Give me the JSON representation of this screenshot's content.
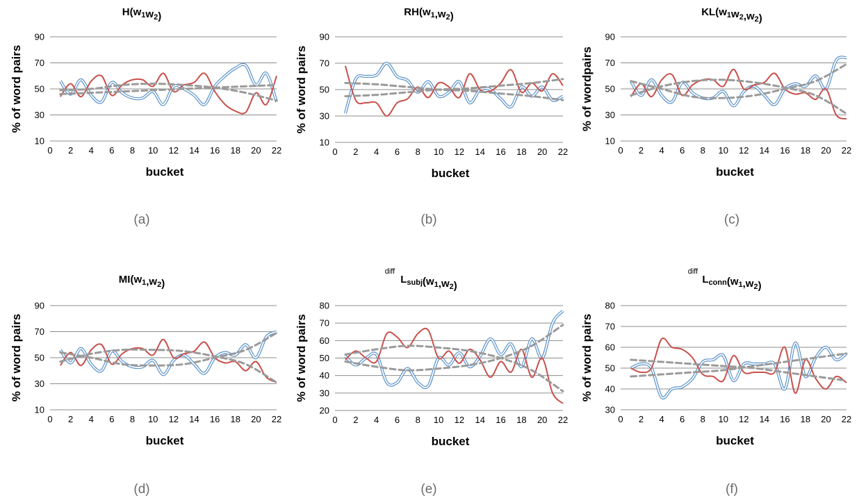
{
  "chart_data": [
    {
      "type": "line",
      "title_main": "H(w",
      "title_parts": [
        [
          "H(w",
          ""
        ],
        [
          "1",
          "s"
        ],
        [
          "w",
          ""
        ],
        [
          "2",
          "s"
        ],
        [
          ")",
          ""
        ]
      ],
      "caption": "(a)",
      "xlabel": "bucket",
      "ylabel": "% of word pairs",
      "xlim": [
        0,
        22
      ],
      "ylim": [
        10,
        90
      ],
      "xticks": [
        "0",
        "2",
        "4",
        "6",
        "8",
        "10",
        "12",
        "14",
        "16",
        "18",
        "20",
        "22"
      ],
      "yticks": [
        "10",
        "30",
        "50",
        "70",
        "90"
      ],
      "grid": true,
      "series": [
        {
          "style": "double-blue",
          "x": [
            1,
            2,
            3,
            4,
            5,
            6,
            7,
            8,
            9,
            10,
            11,
            12,
            13,
            14,
            15,
            16,
            17,
            18,
            19,
            20,
            21,
            22
          ],
          "y": [
            56,
            46,
            57,
            45,
            40,
            55,
            47,
            43,
            43,
            48,
            38,
            52,
            50,
            45,
            38,
            52,
            60,
            66,
            68,
            53,
            62,
            40
          ]
        },
        {
          "style": "red",
          "x": [
            1,
            2,
            3,
            4,
            5,
            6,
            7,
            8,
            9,
            10,
            11,
            12,
            13,
            14,
            15,
            16,
            17,
            18,
            19,
            20,
            21,
            22
          ],
          "y": [
            44,
            54,
            44,
            56,
            60,
            45,
            53,
            57,
            57,
            52,
            62,
            48,
            53,
            55,
            62,
            48,
            38,
            33,
            32,
            47,
            38,
            60
          ]
        },
        {
          "style": "dashed-gray",
          "x": [
            1,
            4,
            7,
            10,
            13,
            16,
            19,
            22
          ],
          "y": [
            49,
            50,
            53,
            54,
            53,
            51,
            47,
            41
          ]
        },
        {
          "style": "dashed-gray",
          "x": [
            1,
            4,
            7,
            10,
            13,
            16,
            19,
            22
          ],
          "y": [
            46,
            47,
            48,
            49,
            50,
            51,
            52,
            53
          ]
        }
      ]
    },
    {
      "type": "line",
      "title_parts": [
        [
          "RH(w",
          ""
        ],
        [
          "1",
          "s"
        ],
        [
          ",w",
          ""
        ],
        [
          "2",
          "s"
        ],
        [
          ")",
          ""
        ]
      ],
      "caption": "(b)",
      "xlabel": "bucket",
      "ylabel": "% of word pairs",
      "xlim": [
        0,
        22
      ],
      "ylim": [
        10,
        90
      ],
      "xticks": [
        "0",
        "2",
        "4",
        "6",
        "8",
        "10",
        "12",
        "14",
        "16",
        "18",
        "20",
        "22"
      ],
      "yticks": [
        "10",
        "30",
        "50",
        "70",
        "90"
      ],
      "grid": true,
      "series": [
        {
          "style": "double-blue",
          "x": [
            1,
            2,
            3,
            4,
            5,
            6,
            7,
            8,
            9,
            10,
            11,
            12,
            13,
            14,
            15,
            16,
            17,
            18,
            19,
            20,
            21,
            22
          ],
          "y": [
            32,
            58,
            60,
            61,
            70,
            60,
            57,
            48,
            56,
            45,
            48,
            56,
            40,
            50,
            50,
            43,
            37,
            52,
            45,
            52,
            42,
            45
          ]
        },
        {
          "style": "red",
          "x": [
            1,
            2,
            3,
            4,
            5,
            6,
            7,
            8,
            9,
            10,
            11,
            12,
            13,
            14,
            15,
            16,
            17,
            18,
            19,
            20,
            21,
            22
          ],
          "y": [
            68,
            42,
            40,
            40,
            30,
            40,
            43,
            52,
            44,
            55,
            52,
            44,
            62,
            50,
            49,
            55,
            65,
            48,
            55,
            49,
            62,
            53
          ]
        },
        {
          "style": "dashed-gray",
          "x": [
            1,
            4,
            7,
            10,
            13,
            16,
            19,
            22
          ],
          "y": [
            55,
            54,
            52,
            50,
            49,
            47,
            45,
            42
          ]
        },
        {
          "style": "dashed-gray",
          "x": [
            1,
            4,
            7,
            10,
            13,
            16,
            19,
            22
          ],
          "y": [
            45,
            46,
            48,
            50,
            51,
            53,
            55,
            58
          ]
        }
      ]
    },
    {
      "type": "line",
      "title_parts": [
        [
          "KL(w",
          ""
        ],
        [
          "1",
          "s"
        ],
        [
          "w",
          ""
        ],
        [
          "2",
          "s"
        ],
        [
          ",w",
          ""
        ],
        [
          "2",
          "s"
        ],
        [
          ")",
          ""
        ]
      ],
      "caption": "(c)",
      "xlabel": "bucket",
      "ylabel": "% of wordpairs",
      "xlim": [
        0,
        22
      ],
      "ylim": [
        10,
        90
      ],
      "xticks": [
        "0",
        "2",
        "4",
        "6",
        "8",
        "10",
        "12",
        "14",
        "16",
        "18",
        "20",
        "22"
      ],
      "yticks": [
        "10",
        "30",
        "50",
        "70",
        "90"
      ],
      "grid": true,
      "series": [
        {
          "style": "double-blue",
          "x": [
            1,
            2,
            3,
            4,
            5,
            6,
            7,
            8,
            9,
            10,
            11,
            12,
            13,
            14,
            15,
            16,
            17,
            18,
            19,
            20,
            21,
            22
          ],
          "y": [
            56,
            45,
            57,
            45,
            40,
            55,
            47,
            43,
            43,
            48,
            37,
            48,
            52,
            45,
            38,
            50,
            54,
            52,
            60,
            50,
            72,
            74
          ]
        },
        {
          "style": "red",
          "x": [
            1,
            2,
            3,
            4,
            5,
            6,
            7,
            8,
            9,
            10,
            11,
            12,
            13,
            14,
            15,
            16,
            17,
            18,
            19,
            20,
            21,
            22
          ],
          "y": [
            44,
            54,
            44,
            57,
            61,
            45,
            53,
            57,
            57,
            52,
            65,
            50,
            53,
            55,
            62,
            50,
            46,
            47,
            42,
            50,
            30,
            27
          ]
        },
        {
          "style": "dashed-gray",
          "x": [
            1,
            4,
            7,
            10,
            13,
            16,
            19,
            22
          ],
          "y": [
            45,
            52,
            56,
            57,
            55,
            51,
            45,
            31
          ]
        },
        {
          "style": "dashed-gray",
          "x": [
            1,
            4,
            7,
            10,
            13,
            16,
            19,
            22
          ],
          "y": [
            56,
            50,
            44,
            43,
            45,
            50,
            56,
            69
          ]
        }
      ]
    },
    {
      "type": "line",
      "title_parts": [
        [
          "MI(w",
          ""
        ],
        [
          "1",
          "s"
        ],
        [
          ",w",
          ""
        ],
        [
          "2",
          "s"
        ],
        [
          ")",
          ""
        ]
      ],
      "caption": "(d)",
      "xlabel": "bucket",
      "ylabel": "% of word pairs",
      "xlim": [
        0,
        22
      ],
      "ylim": [
        10,
        90
      ],
      "xticks": [
        "0",
        "2",
        "4",
        "6",
        "8",
        "10",
        "12",
        "14",
        "16",
        "18",
        "20",
        "22"
      ],
      "yticks": [
        "10",
        "30",
        "50",
        "70",
        "90"
      ],
      "grid": true,
      "series": [
        {
          "style": "double-blue",
          "x": [
            1,
            2,
            3,
            4,
            5,
            6,
            7,
            8,
            9,
            10,
            11,
            12,
            13,
            14,
            15,
            16,
            17,
            18,
            19,
            20,
            21,
            22
          ],
          "y": [
            56,
            46,
            57,
            45,
            40,
            55,
            47,
            43,
            43,
            48,
            37,
            48,
            52,
            45,
            38,
            50,
            54,
            52,
            60,
            50,
            66,
            70
          ]
        },
        {
          "style": "red",
          "x": [
            1,
            2,
            3,
            4,
            5,
            6,
            7,
            8,
            9,
            10,
            11,
            12,
            13,
            14,
            15,
            16,
            17,
            18,
            19,
            20,
            21,
            22
          ],
          "y": [
            44,
            54,
            44,
            56,
            60,
            45,
            53,
            57,
            57,
            52,
            64,
            50,
            53,
            55,
            62,
            50,
            46,
            47,
            40,
            47,
            35,
            31
          ]
        },
        {
          "style": "dashed-gray",
          "x": [
            1,
            4,
            7,
            10,
            13,
            16,
            19,
            22
          ],
          "y": [
            47,
            53,
            56,
            56,
            55,
            51,
            45,
            31
          ]
        },
        {
          "style": "dashed-gray",
          "x": [
            1,
            4,
            7,
            10,
            13,
            16,
            19,
            22
          ],
          "y": [
            54,
            50,
            45,
            44,
            45,
            50,
            56,
            69
          ]
        }
      ]
    },
    {
      "type": "line",
      "title_parts": [
        [
          "L",
          ""
        ],
        [
          "subj",
          "s"
        ],
        [
          "(w",
          ""
        ],
        [
          "1",
          "s"
        ],
        [
          ",w",
          ""
        ],
        [
          "2",
          "s"
        ],
        [
          ")",
          ""
        ]
      ],
      "title_sup": "diff",
      "caption": "(e)",
      "xlabel": "bucket",
      "ylabel": "% of word pairs",
      "xlim": [
        0,
        22
      ],
      "ylim": [
        20,
        80
      ],
      "xticks": [
        "0",
        "2",
        "4",
        "6",
        "8",
        "10",
        "12",
        "14",
        "16",
        "18",
        "20",
        "22"
      ],
      "yticks": [
        "20",
        "30",
        "40",
        "50",
        "60",
        "70",
        "80"
      ],
      "grid": true,
      "series": [
        {
          "style": "double-blue",
          "x": [
            1,
            2,
            3,
            4,
            5,
            6,
            7,
            8,
            9,
            10,
            11,
            12,
            13,
            14,
            15,
            16,
            17,
            18,
            19,
            20,
            21,
            22
          ],
          "y": [
            51,
            46,
            50,
            52,
            36,
            36,
            44,
            36,
            34,
            50,
            46,
            53,
            45,
            51,
            61,
            52,
            58,
            45,
            61,
            50,
            70,
            77
          ]
        },
        {
          "style": "red",
          "x": [
            1,
            2,
            3,
            4,
            5,
            6,
            7,
            8,
            9,
            10,
            11,
            12,
            13,
            14,
            15,
            16,
            17,
            18,
            19,
            20,
            21,
            22
          ],
          "y": [
            49,
            54,
            50,
            48,
            64,
            62,
            56,
            64,
            66,
            50,
            54,
            47,
            55,
            49,
            39,
            48,
            42,
            55,
            39,
            50,
            30,
            24
          ]
        },
        {
          "style": "dashed-gray",
          "x": [
            1,
            4,
            7,
            10,
            13,
            16,
            19,
            22
          ],
          "y": [
            52,
            55,
            57,
            56,
            54,
            50,
            43,
            31
          ]
        },
        {
          "style": "dashed-gray",
          "x": [
            1,
            4,
            7,
            10,
            13,
            16,
            19,
            22
          ],
          "y": [
            48,
            45,
            43,
            44,
            46,
            50,
            57,
            69
          ]
        }
      ]
    },
    {
      "type": "line",
      "title_parts": [
        [
          "L",
          ""
        ],
        [
          "conn",
          "s"
        ],
        [
          "(w",
          ""
        ],
        [
          "1",
          "s"
        ],
        [
          ",w",
          ""
        ],
        [
          "2",
          "s"
        ],
        [
          ")",
          ""
        ]
      ],
      "title_sup": "diff",
      "caption": "(f)",
      "xlabel": "bucket",
      "ylabel": "% of word pairs",
      "xlim": [
        0,
        22
      ],
      "ylim": [
        30,
        80
      ],
      "xticks": [
        "0",
        "2",
        "4",
        "6",
        "8",
        "10",
        "12",
        "14",
        "16",
        "18",
        "20",
        "22"
      ],
      "yticks": [
        "30",
        "40",
        "50",
        "60",
        "70",
        "80"
      ],
      "grid": true,
      "series": [
        {
          "style": "double-blue",
          "x": [
            1,
            2,
            3,
            4,
            5,
            6,
            7,
            8,
            9,
            10,
            11,
            12,
            13,
            14,
            15,
            16,
            17,
            18,
            19,
            20,
            21,
            22
          ],
          "y": [
            50,
            52,
            50,
            36,
            40,
            41,
            45,
            53,
            54,
            56,
            44,
            52,
            52,
            52,
            52,
            40,
            62,
            46,
            55,
            60,
            54,
            57
          ]
        },
        {
          "style": "red",
          "x": [
            1,
            2,
            3,
            4,
            5,
            6,
            7,
            8,
            9,
            10,
            11,
            12,
            13,
            14,
            15,
            16,
            17,
            18,
            19,
            20,
            21,
            22
          ],
          "y": [
            50,
            48,
            50,
            64,
            60,
            59,
            55,
            47,
            46,
            44,
            56,
            48,
            48,
            48,
            48,
            60,
            38,
            54,
            45,
            40,
            46,
            43
          ]
        },
        {
          "style": "dashed-gray",
          "x": [
            1,
            4,
            7,
            10,
            13,
            16,
            19,
            22
          ],
          "y": [
            54,
            53,
            52,
            51,
            50,
            48,
            46,
            44
          ]
        },
        {
          "style": "dashed-gray",
          "x": [
            1,
            4,
            7,
            10,
            13,
            16,
            19,
            22
          ],
          "y": [
            46,
            47,
            48,
            49,
            51,
            53,
            55,
            57
          ]
        }
      ]
    }
  ],
  "colors": {
    "blue": "#5b92c9",
    "red": "#c9504b",
    "gray": "#9a9a9a",
    "grid": "#8c8c8c"
  }
}
